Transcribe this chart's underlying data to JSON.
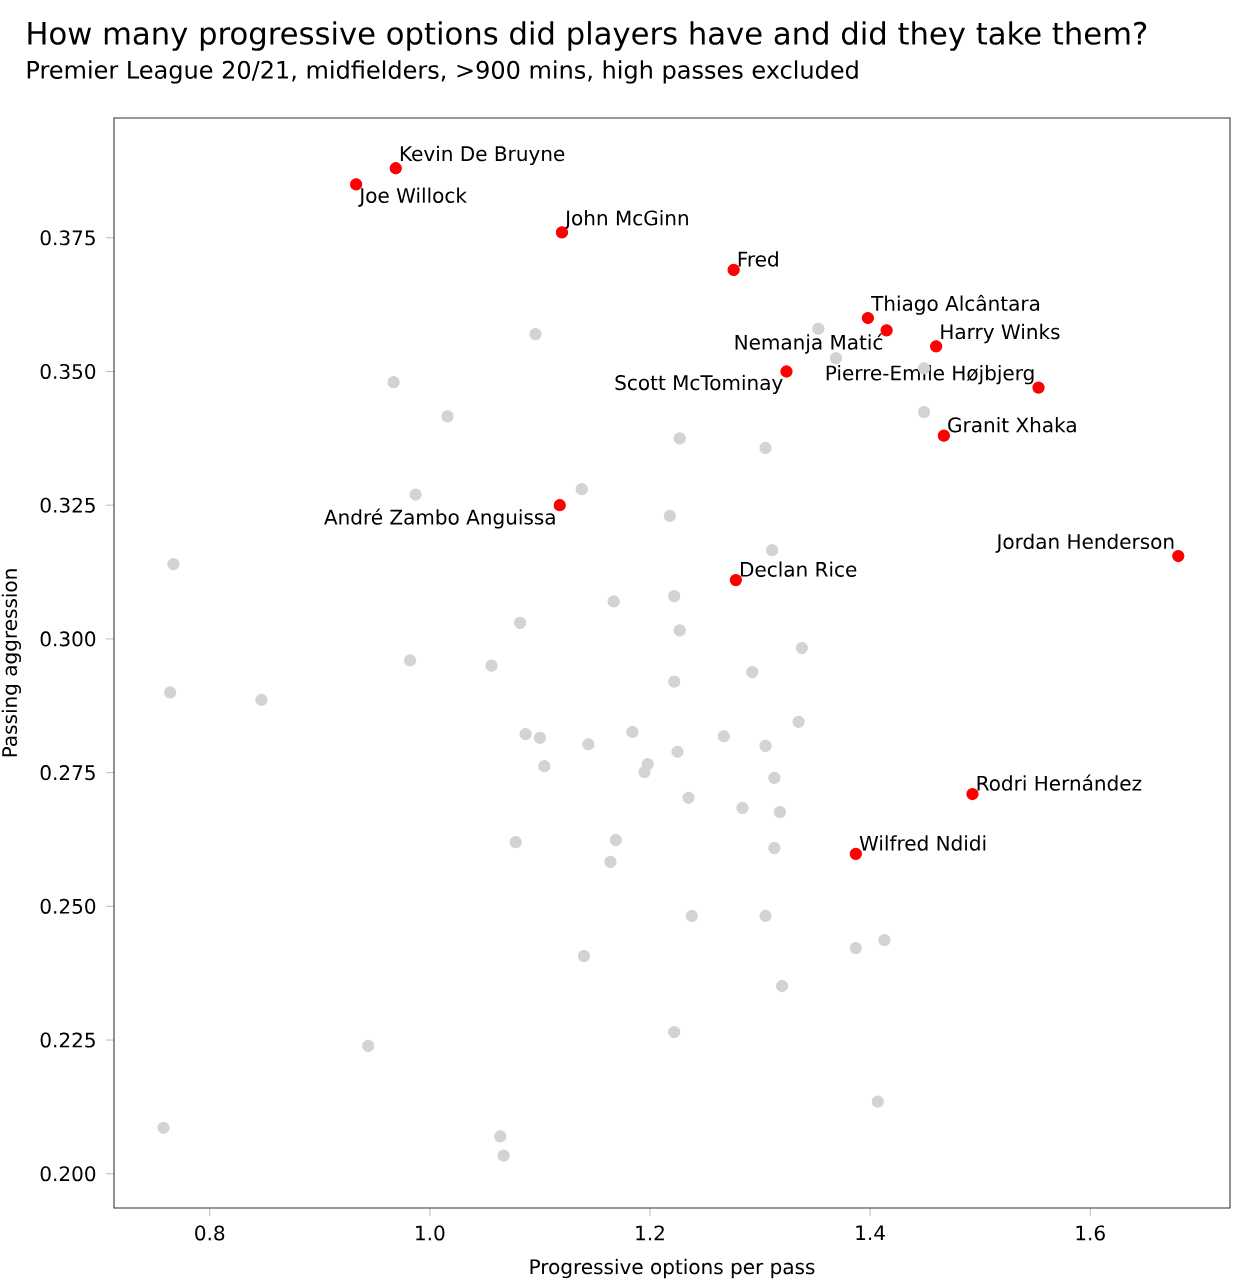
{
  "chart_data": {
    "type": "scatter",
    "title": "How many progressive options did players have and did they take them?",
    "subtitle": "Premier League 20/21, midfielders, >900 mins, high passes excluded",
    "xlabel": "Progressive options per pass",
    "ylabel": "Passing aggression",
    "marker": "circle",
    "xlim": [
      0.713,
      1.727
    ],
    "ylim": [
      0.1936,
      0.3974
    ],
    "xticks": [
      0.8,
      {
        "value": 1.0,
        "label": "1.0"
      },
      1.2,
      1.4,
      1.6
    ],
    "yticks": [
      {
        "value": 0.2,
        "label": "0.200"
      },
      0.225,
      {
        "value": 0.25,
        "label": "0.250"
      },
      0.275,
      {
        "value": 0.3,
        "label": "0.300"
      },
      0.325,
      {
        "value": 0.35,
        "label": "0.350"
      },
      0.375
    ],
    "series": [
      {
        "color": "#d3d3d3",
        "x": [
          1.096,
          0.967,
          1.016,
          0.987,
          0.767,
          1.138,
          1.218,
          1.222,
          1.167,
          1.082,
          0.982,
          1.056,
          1.353,
          1.369,
          1.449,
          1.449,
          1.227,
          1.305,
          1.311,
          1.227,
          1.338,
          1.293,
          0.764,
          0.847,
          1.222,
          1.087,
          1.1,
          1.144,
          1.184,
          1.104,
          1.195,
          1.198,
          1.078,
          1.169,
          1.164,
          1.14,
          0.944,
          0.758,
          1.064,
          1.067,
          1.222,
          1.335,
          1.267,
          1.305,
          1.225,
          1.313,
          1.235,
          1.284,
          1.318,
          1.313,
          1.238,
          1.305,
          1.387,
          1.413,
          1.32,
          1.407
        ],
        "values": [
          0.357,
          0.348,
          0.3416,
          0.327,
          0.314,
          0.328,
          0.323,
          0.308,
          0.307,
          0.303,
          0.296,
          0.295,
          0.358,
          0.3525,
          0.3506,
          0.3424,
          0.3375,
          0.3357,
          0.3166,
          0.3016,
          0.2983,
          0.2938,
          0.29,
          0.2886,
          0.292,
          0.2822,
          0.2815,
          0.2803,
          0.2826,
          0.2762,
          0.2751,
          0.2766,
          0.262,
          0.2624,
          0.2583,
          0.2407,
          0.2239,
          0.2086,
          0.207,
          0.2034,
          0.2265,
          0.2845,
          0.2818,
          0.28,
          0.2789,
          0.274,
          0.2703,
          0.2684,
          0.2676,
          0.2609,
          0.2482,
          0.2482,
          0.2422,
          0.2437,
          0.2351,
          0.2135
        ]
      },
      {
        "color": "#ff0000",
        "x": [
          0.969,
          0.933,
          1.12,
          1.276,
          1.398,
          1.46,
          1.415,
          1.553,
          1.324,
          1.467,
          1.118,
          1.68,
          1.278,
          1.493,
          1.387
        ],
        "values": [
          0.388,
          0.385,
          0.376,
          0.369,
          0.36,
          0.3547,
          0.3577,
          0.347,
          0.35,
          0.338,
          0.325,
          0.3155,
          0.311,
          0.271,
          0.2598
        ]
      }
    ],
    "annotations": [
      {
        "text": "Kevin De Bruyne",
        "x": 0.969,
        "y": 0.388
      },
      {
        "text": "Joe Willock",
        "x": 0.933,
        "y": 0.385
      },
      {
        "text": "John McGinn",
        "x": 1.12,
        "y": 0.376
      },
      {
        "text": "Fred",
        "x": 1.276,
        "y": 0.369
      },
      {
        "text": "Thiago Alcântara",
        "x": 1.398,
        "y": 0.36
      },
      {
        "text": "Harry Winks",
        "x": 1.46,
        "y": 0.3547
      },
      {
        "text": "Nemanja Matić",
        "x": 1.415,
        "y": 0.3577
      },
      {
        "text": "Pierre-Emile Højbjerg",
        "x": 1.553,
        "y": 0.347
      },
      {
        "text": "Scott McTominay",
        "x": 1.324,
        "y": 0.35
      },
      {
        "text": "Granit Xhaka",
        "x": 1.467,
        "y": 0.338
      },
      {
        "text": "André Zambo Anguissa",
        "x": 1.118,
        "y": 0.325
      },
      {
        "text": "Jordan Henderson",
        "x": 1.68,
        "y": 0.3155
      },
      {
        "text": "Declan Rice",
        "x": 1.278,
        "y": 0.311
      },
      {
        "text": "Rodri Hernández",
        "x": 1.493,
        "y": 0.271
      },
      {
        "text": "Wilfred Ndidi",
        "x": 1.387,
        "y": 0.2598
      }
    ]
  }
}
